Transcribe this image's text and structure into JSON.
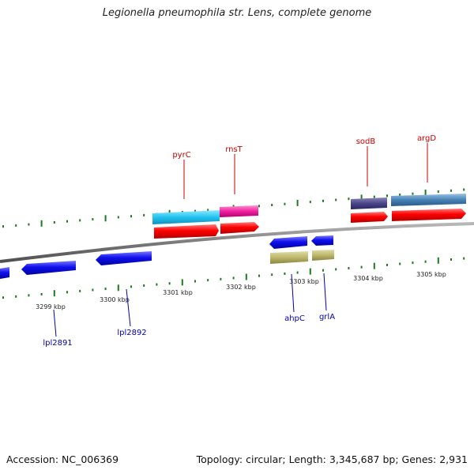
{
  "title": "Legionella pneumophila str. Lens, complete genome",
  "footer": {
    "accession": "Accession: NC_006369",
    "summary": "Topology: circular; Length: 3,345,687 bp; Genes: 2,931"
  },
  "colors": {
    "backbone": "#8a8a8a",
    "tick": "#1d7a1d",
    "forward_cds": "#ff0000",
    "reverse_cds": "#1010ee",
    "forward_label": "#cc0000",
    "reverse_label": "#0000aa"
  },
  "scale_labels": [
    "3299 kbp",
    "3300 kbp",
    "3301 kbp",
    "3302 kbp",
    "3303 kbp",
    "3304 kbp",
    "3305 kbp"
  ],
  "gene_labels": {
    "forward": [
      "pyrC",
      "rnsT",
      "sodB",
      "argD"
    ],
    "reverse": [
      "lpl2891",
      "lpl2892",
      "ahpC",
      "grlA"
    ]
  }
}
